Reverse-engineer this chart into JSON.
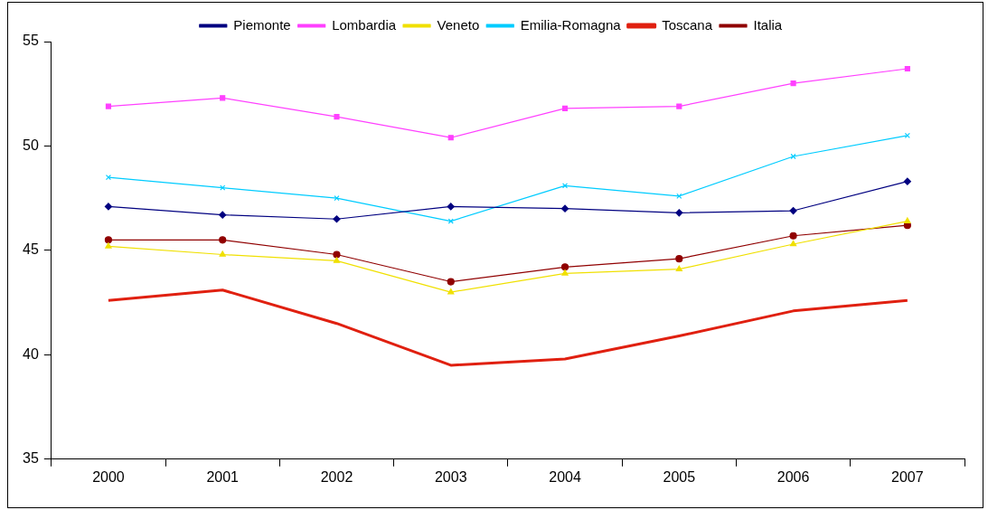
{
  "chart_data": {
    "type": "line",
    "categories": [
      "2000",
      "2001",
      "2002",
      "2003",
      "2004",
      "2005",
      "2006",
      "2007"
    ],
    "ylim": [
      35,
      55
    ],
    "yticks": [
      35,
      40,
      45,
      50,
      55
    ],
    "grid": false,
    "legend": "top",
    "series": [
      {
        "name": "Piemonte",
        "color": "#000080",
        "marker": "diamond",
        "values": [
          47.1,
          46.7,
          46.5,
          47.1,
          47.0,
          46.8,
          46.9,
          48.3
        ]
      },
      {
        "name": "Lombardia",
        "color": "#ff40ff",
        "marker": "square",
        "values": [
          51.9,
          52.3,
          51.4,
          50.4,
          51.8,
          51.9,
          53.0,
          53.7
        ]
      },
      {
        "name": "Veneto",
        "color": "#f0e000",
        "marker": "triangle",
        "values": [
          45.2,
          44.8,
          44.5,
          43.0,
          43.9,
          44.1,
          45.3,
          46.4
        ]
      },
      {
        "name": "Emilia-Romagna",
        "color": "#00ccff",
        "marker": "cross",
        "values": [
          48.5,
          48.0,
          47.5,
          46.4,
          48.1,
          47.6,
          49.5,
          50.5
        ]
      },
      {
        "name": "Toscana",
        "color": "#e02010",
        "marker": "none",
        "values": [
          42.6,
          43.1,
          41.5,
          39.5,
          39.8,
          40.9,
          42.1,
          42.6
        ]
      },
      {
        "name": "Italia",
        "color": "#900000",
        "marker": "circle",
        "values": [
          45.5,
          45.5,
          44.8,
          43.5,
          44.2,
          44.6,
          45.7,
          46.2
        ]
      }
    ]
  }
}
